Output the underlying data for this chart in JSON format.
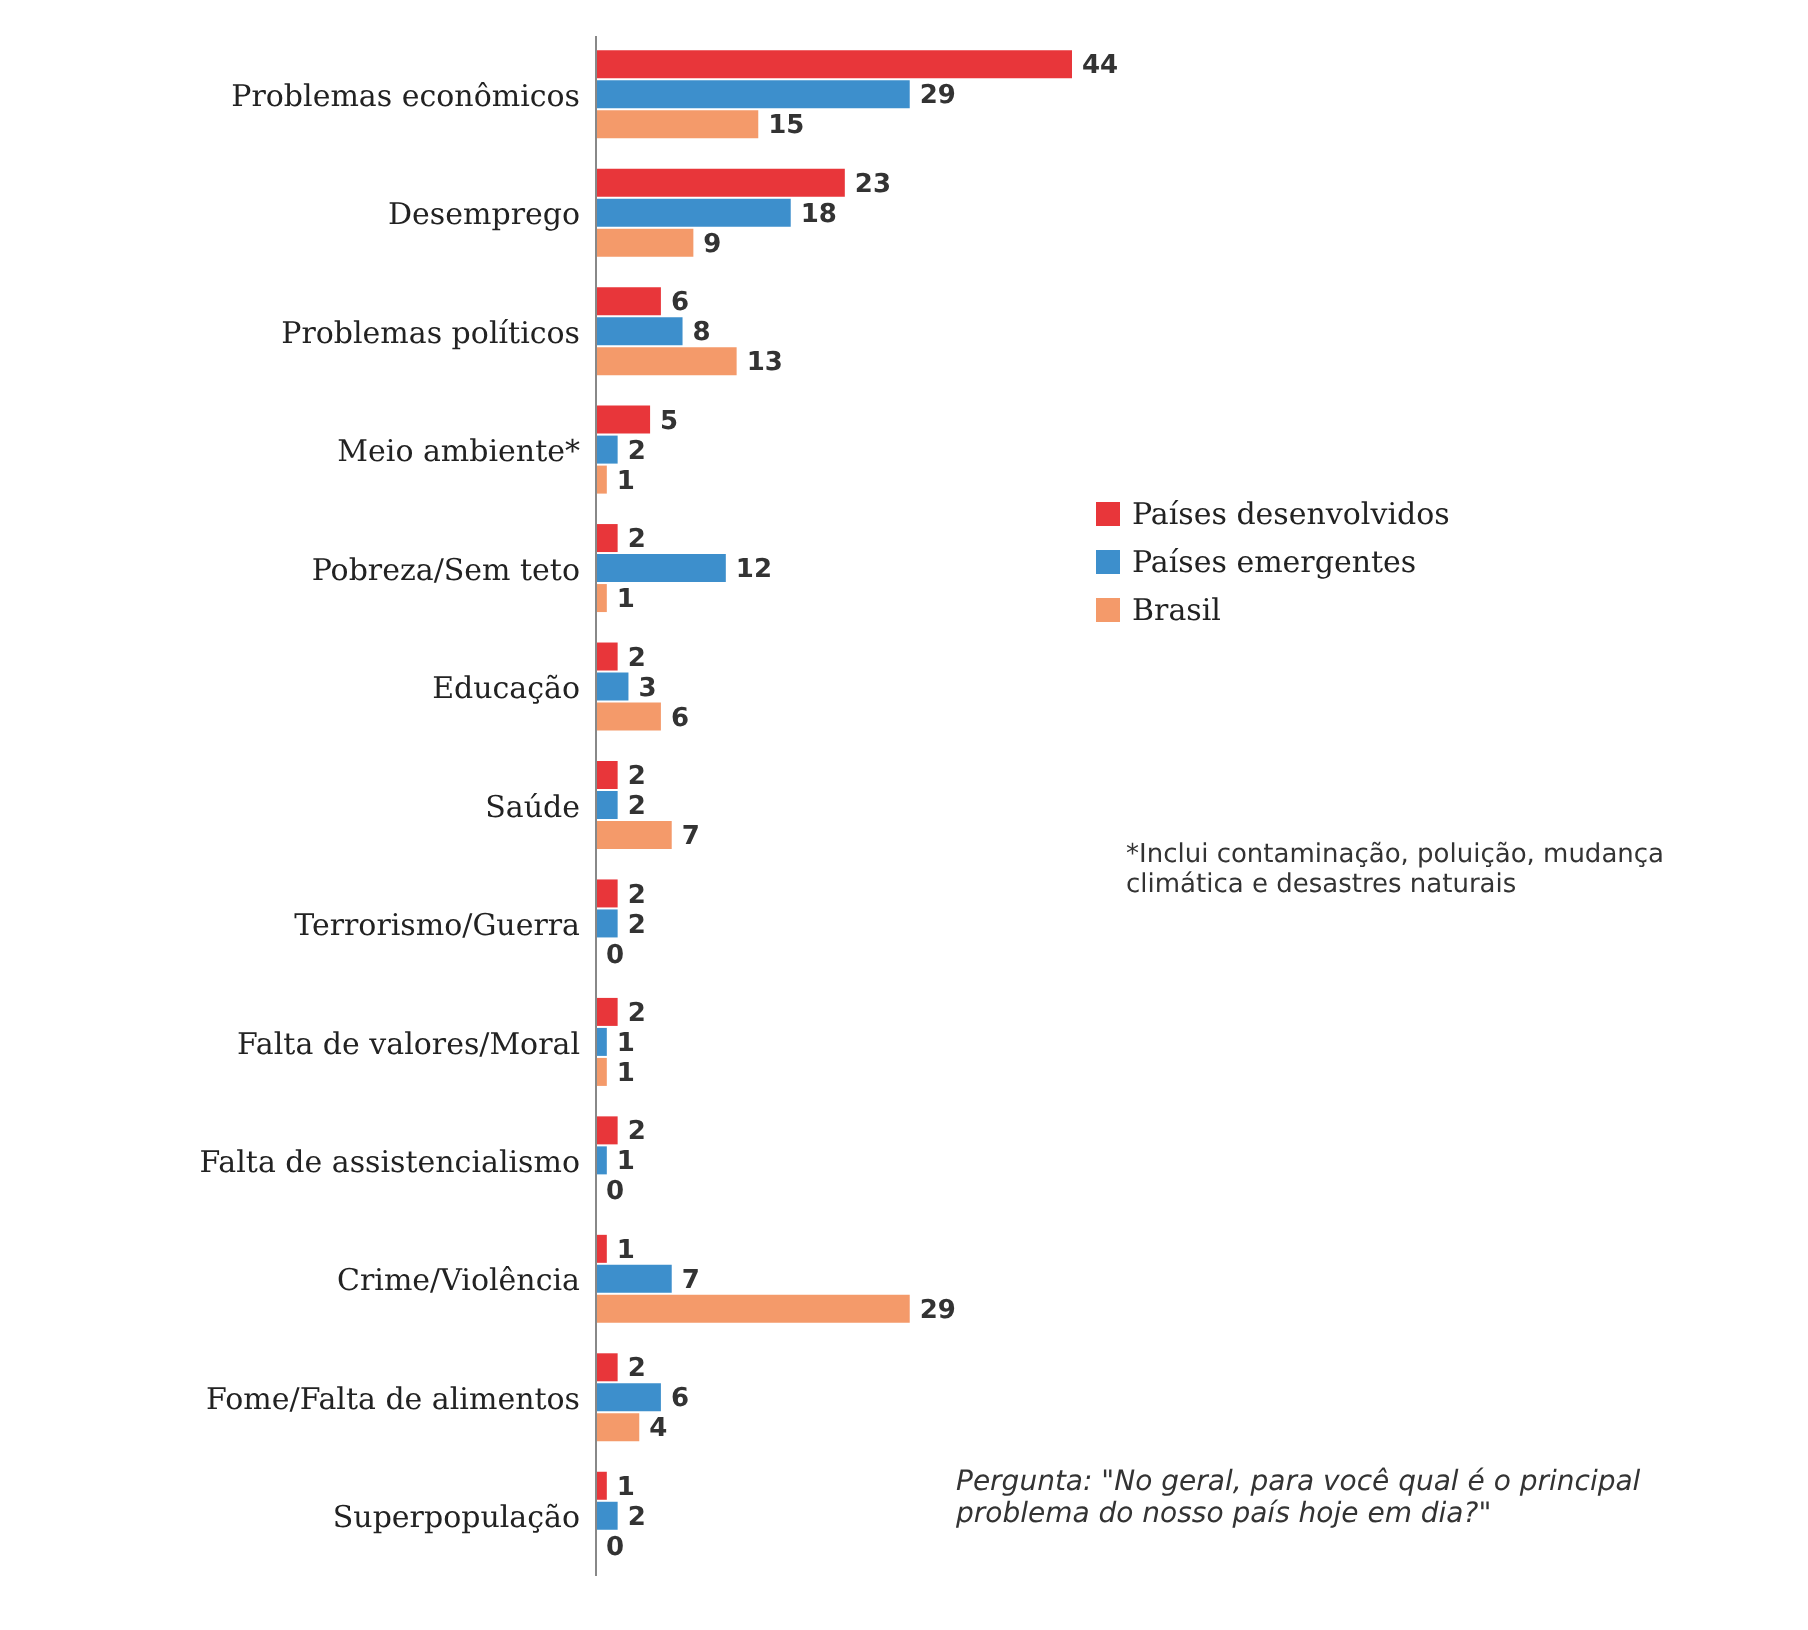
{
  "chart_data": {
    "type": "bar",
    "orientation": "horizontal",
    "data_labels": true,
    "legend": "right",
    "grid": false,
    "categories": [
      "Problemas econômicos",
      "Desemprego",
      "Problemas políticos",
      "Meio ambiente*",
      "Pobreza/Sem teto",
      "Educação",
      "Saúde",
      "Terrorismo/Guerra",
      "Falta de valores/Moral",
      "Falta de assistencialismo",
      "Crime/Violência",
      "Fome/Falta de alimentos",
      "Superpopulação"
    ],
    "series": [
      {
        "name": "Países desenvolvidos",
        "color": "#e8363a",
        "values": [
          44,
          23,
          6,
          5,
          2,
          2,
          2,
          2,
          2,
          2,
          1,
          2,
          1
        ]
      },
      {
        "name": "Países emergentes",
        "color": "#3d8fcc",
        "values": [
          29,
          18,
          8,
          2,
          12,
          3,
          2,
          2,
          1,
          1,
          7,
          6,
          2
        ]
      },
      {
        "name": "Brasil",
        "color": "#f49a6a",
        "values": [
          15,
          9,
          13,
          1,
          1,
          6,
          7,
          0,
          1,
          0,
          29,
          4,
          0
        ]
      }
    ],
    "annotations": [
      "*Inclui contaminação, poluição, mudança climática e desastres naturais",
      "Pergunta: \"No geral, para você qual é o principal problema do nosso país hoje em dia?\""
    ]
  }
}
